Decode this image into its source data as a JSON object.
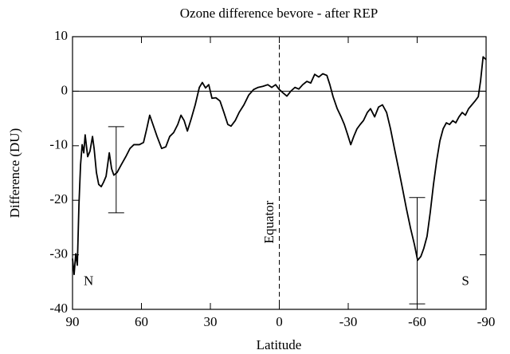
{
  "chart_data": {
    "type": "line",
    "title": "Ozone difference bevore - after REP",
    "xlabel": "Latitude",
    "ylabel": "Difference (DU)",
    "xlim": [
      90,
      -90
    ],
    "ylim": [
      -40,
      10
    ],
    "xticks": [
      90,
      60,
      30,
      0,
      -30,
      -60,
      -90
    ],
    "yticks": [
      10,
      0,
      -10,
      -20,
      -30,
      -40
    ],
    "reference_lines": {
      "y": 0,
      "x": 0
    },
    "annotations": [
      {
        "text": "N",
        "x": 83,
        "y": -35
      },
      {
        "text": "S",
        "x": -81,
        "y": -35
      },
      {
        "text": "Equator",
        "x": 4,
        "y": -24
      }
    ],
    "series": [
      {
        "color": "#000000",
        "x": [
          90,
          89.3,
          88.6,
          87.9,
          87.2,
          86.5,
          85.8,
          85.1,
          84.5,
          83.4,
          82.4,
          81.3,
          80.6,
          79.6,
          78.6,
          77.5,
          76.5,
          75.4,
          74,
          73,
          72,
          70.6,
          68.8,
          66.8,
          65,
          63.3,
          60.9,
          59.1,
          57.7,
          56.4,
          55,
          53.2,
          51.2,
          49.4,
          47.7,
          46,
          44.2,
          42.8,
          41.4,
          40,
          38.3,
          36.6,
          34.8,
          33.5,
          32.1,
          30.7,
          29.3,
          27.6,
          25.8,
          24.1,
          22.4,
          21,
          19.2,
          17.5,
          15.4,
          13.3,
          11.2,
          9.2,
          7.1,
          5,
          3.3,
          1.6,
          0.2,
          -1.6,
          -3.3,
          -5,
          -6.8,
          -8.5,
          -10.2,
          -12,
          -13.7,
          -15.4,
          -17.2,
          -18.9,
          -20.7,
          -22,
          -23.4,
          -25.2,
          -26.9,
          -28.3,
          -29.7,
          -31.1,
          -32.4,
          -33.8,
          -35.2,
          -36.6,
          -38.3,
          -39.7,
          -41.5,
          -43.2,
          -44.9,
          -46.7,
          -48.4,
          -50.1,
          -51.9,
          -53.6,
          -55.3,
          -57.1,
          -58.8,
          -60.2,
          -61.6,
          -62.9,
          -64.3,
          -65.7,
          -67.1,
          -68.5,
          -69.9,
          -71.3,
          -72.7,
          -74.1,
          -75.5,
          -76.8,
          -78.2,
          -79.6,
          -81,
          -82.4,
          -83.8,
          -85.2,
          -86.6,
          -87.6,
          -88.7,
          -90
        ],
        "values": [
          -30.7,
          -33.6,
          -29.8,
          -31.9,
          -20.8,
          -13.5,
          -9.8,
          -11.3,
          -8,
          -12,
          -11,
          -8.3,
          -10.5,
          -14.9,
          -17.1,
          -17.5,
          -16.7,
          -15.6,
          -11.3,
          -14.2,
          -15.4,
          -14.9,
          -13.5,
          -12,
          -10.5,
          -9.8,
          -9.8,
          -9.4,
          -6.9,
          -4.4,
          -6.1,
          -8.3,
          -10.5,
          -10.2,
          -8.3,
          -7.6,
          -6.1,
          -4.4,
          -5.4,
          -7.3,
          -5,
          -2.5,
          0.7,
          1.6,
          0.6,
          1.2,
          -1.3,
          -1.2,
          -1.8,
          -3.9,
          -6.1,
          -6.4,
          -5.4,
          -3.9,
          -2.5,
          -0.7,
          0.3,
          0.7,
          0.9,
          1.2,
          0.7,
          1.2,
          0.4,
          -0.3,
          -0.9,
          0,
          0.7,
          0.4,
          1.2,
          1.8,
          1.5,
          3.1,
          2.6,
          3.2,
          2.9,
          1.2,
          -1,
          -3.2,
          -4.7,
          -6.1,
          -7.9,
          -9.8,
          -8.3,
          -6.9,
          -6.1,
          -5.4,
          -3.9,
          -3.2,
          -4.7,
          -2.9,
          -2.5,
          -3.9,
          -6.9,
          -10.5,
          -14.2,
          -17.8,
          -21.5,
          -25.1,
          -28.1,
          -31,
          -30.3,
          -28.8,
          -26.6,
          -22.2,
          -17.1,
          -12.7,
          -9.1,
          -6.9,
          -5.8,
          -6.1,
          -5.4,
          -5.8,
          -4.7,
          -3.9,
          -4.4,
          -3.2,
          -2.5,
          -1.8,
          -1,
          1.9,
          6.3,
          5.8
        ]
      }
    ],
    "errorbars": {
      "x": [
        71,
        -60
      ],
      "values": [
        -14.4,
        -29.25
      ],
      "errors": [
        7.9,
        9.75
      ]
    }
  }
}
